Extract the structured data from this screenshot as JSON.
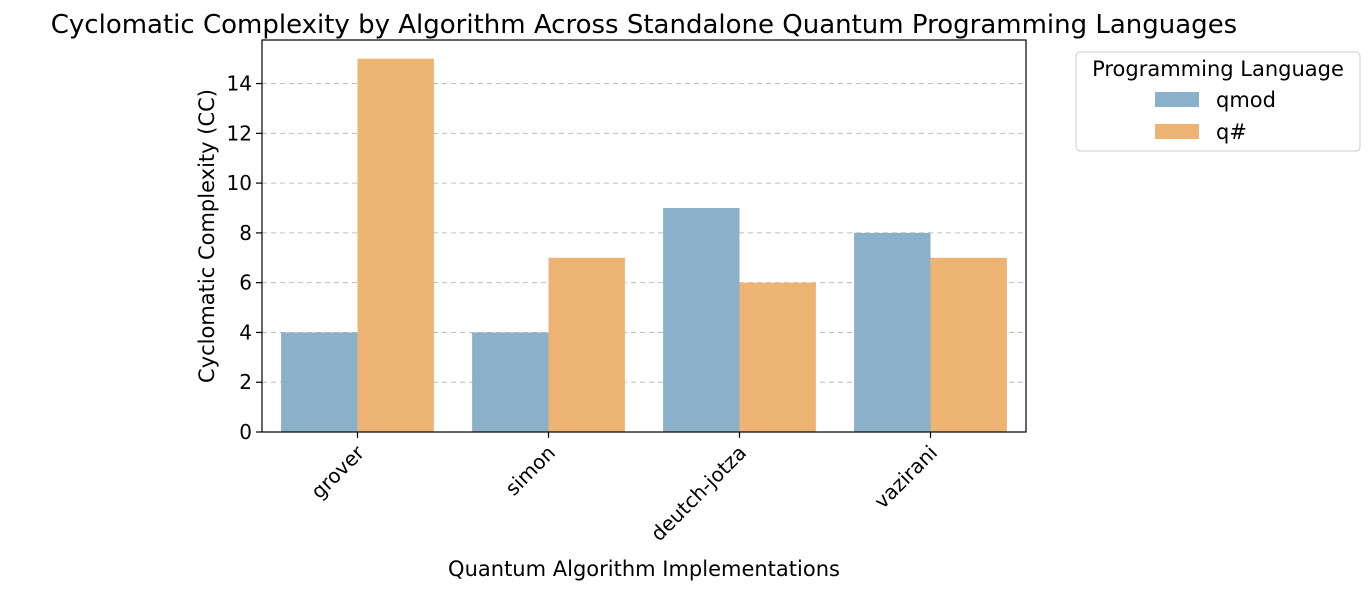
{
  "chart_data": {
    "type": "bar",
    "title": "Cyclomatic Complexity by Algorithm Across Standalone Quantum Programming Languages",
    "xlabel": "Quantum Algorithm Implementations",
    "ylabel": "Cyclomatic Complexity (CC)",
    "categories": [
      "grover",
      "simon",
      "deutch-jotza",
      "vazirani"
    ],
    "series": [
      {
        "name": "qmod",
        "values": [
          4,
          4,
          9,
          8
        ],
        "color": "#8ab0ca"
      },
      {
        "name": "q#",
        "values": [
          15,
          7,
          6,
          7
        ],
        "color": "#ecb373"
      }
    ],
    "ylim": [
      0,
      15.75
    ],
    "yticks": [
      0,
      2,
      4,
      6,
      8,
      10,
      12,
      14
    ],
    "ytick_labels": [
      "0",
      "2",
      "4",
      "6",
      "8",
      "10",
      "12",
      "14"
    ],
    "grid": "y-dashed",
    "legend": {
      "title": "Programming Language",
      "placement": "outside-top-right"
    }
  }
}
